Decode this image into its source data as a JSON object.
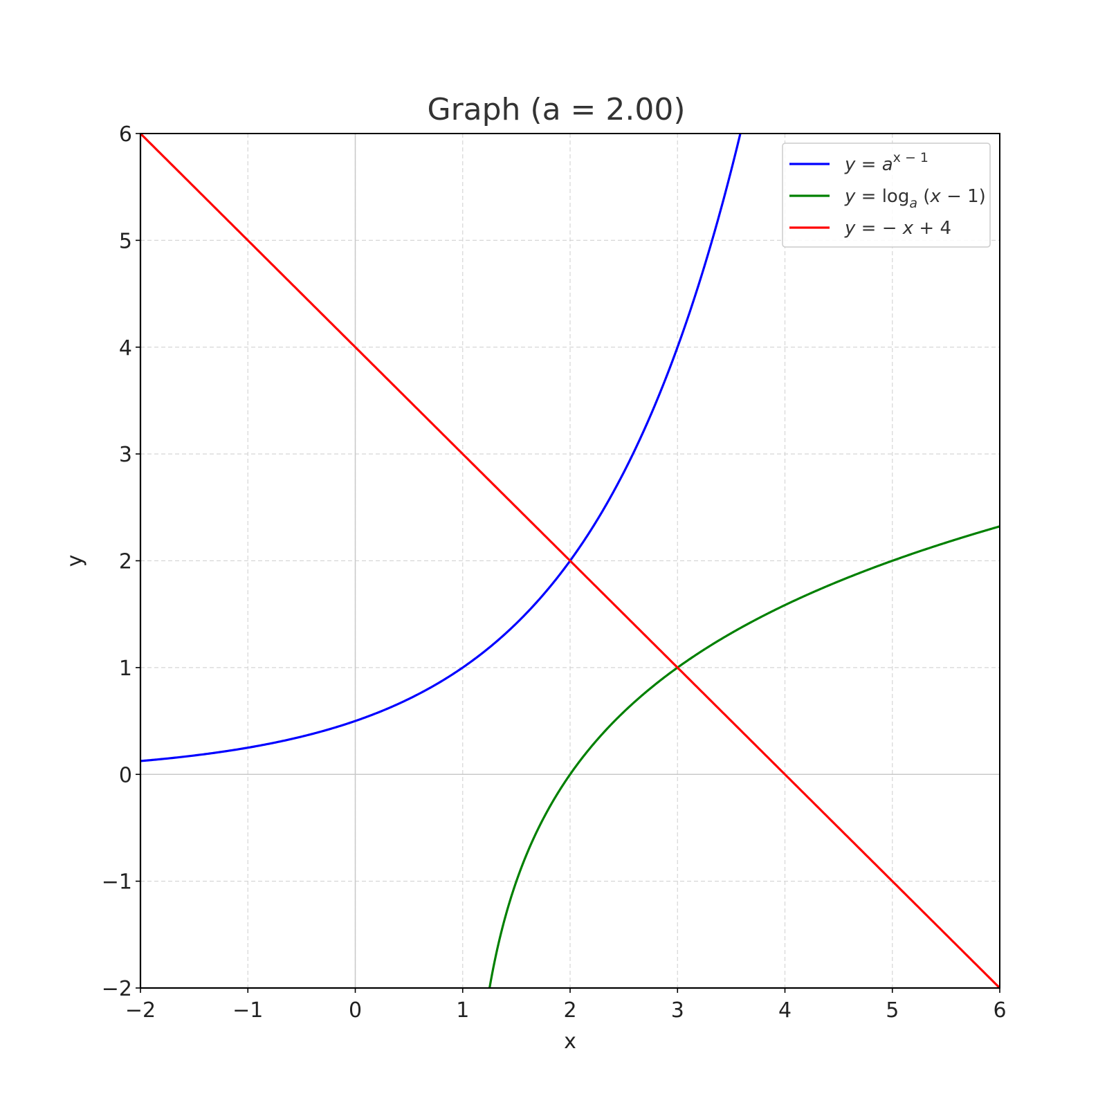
{
  "chart_data": {
    "type": "line",
    "title": "Graph (a = 2.00)",
    "xlabel": "x",
    "ylabel": "y",
    "xlim": [
      -2,
      6
    ],
    "ylim": [
      -2,
      6
    ],
    "x_ticks": [
      -2,
      -1,
      0,
      1,
      2,
      3,
      4,
      5,
      6
    ],
    "y_ticks": [
      -2,
      -1,
      0,
      1,
      2,
      3,
      4,
      5,
      6
    ],
    "x_tick_labels": [
      "−2",
      "−1",
      "0",
      "1",
      "2",
      "3",
      "4",
      "5",
      "6"
    ],
    "y_tick_labels": [
      "−2",
      "−1",
      "0",
      "1",
      "2",
      "3",
      "4",
      "5",
      "6"
    ],
    "grid": true,
    "legend_position": "top-right",
    "a": 2.0,
    "series": [
      {
        "name": "y = a^(x−1)",
        "color": "#0000ff",
        "x": [
          -2,
          -1.5,
          -1,
          -0.5,
          0,
          0.5,
          1,
          1.5,
          2,
          2.5,
          3,
          3.25,
          3.5,
          3.585
        ],
        "y": [
          0.125,
          0.177,
          0.25,
          0.354,
          0.5,
          0.707,
          1,
          1.414,
          2,
          2.828,
          4,
          4.757,
          5.657,
          6
        ]
      },
      {
        "name": "y = log_a(x − 1)",
        "color": "#008000",
        "x": [
          1.25,
          1.3,
          1.5,
          1.75,
          2,
          2.5,
          3,
          3.5,
          4,
          4.5,
          5,
          5.5,
          6
        ],
        "y": [
          -2,
          -1.737,
          -1,
          -0.415,
          0,
          0.585,
          1,
          1.322,
          1.585,
          1.807,
          2,
          2.17,
          2.322
        ]
      },
      {
        "name": "y = −x + 4",
        "color": "#ff0000",
        "x": [
          -2,
          6
        ],
        "y": [
          6,
          -2
        ]
      }
    ]
  }
}
